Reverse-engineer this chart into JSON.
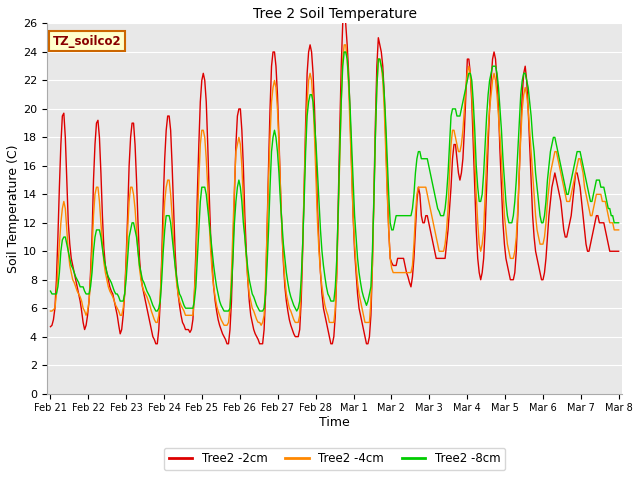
{
  "title": "Tree 2 Soil Temperature",
  "xlabel": "Time",
  "ylabel": "Soil Temperature (C)",
  "ylim": [
    0,
    26
  ],
  "background_color": "#ffffff",
  "plot_bg_color": "#e8e8e8",
  "grid_color": "#ffffff",
  "label_box_text": "TZ_soilco2",
  "label_box_bg": "#ffffcc",
  "label_box_edge": "#cc6600",
  "series": {
    "Tree2 -2cm": {
      "color": "#dd0000",
      "linewidth": 1.0
    },
    "Tree2 -4cm": {
      "color": "#ff8800",
      "linewidth": 1.0
    },
    "Tree2 -8cm": {
      "color": "#00cc00",
      "linewidth": 1.0
    }
  },
  "x_tick_labels": [
    "Feb 21",
    "Feb 22",
    "Feb 23",
    "Feb 24",
    "Feb 25",
    "Feb 26",
    "Feb 27",
    "Feb 28",
    "Mar 1",
    "Mar 2",
    "Mar 3",
    "Mar 4",
    "Mar 5",
    "Mar 6",
    "Mar 7",
    "Mar 8"
  ],
  "data_2cm": [
    4.7,
    4.8,
    5.2,
    6.0,
    8.0,
    11.0,
    14.5,
    17.5,
    19.5,
    19.7,
    18.0,
    15.0,
    12.0,
    10.5,
    9.5,
    9.0,
    8.5,
    8.0,
    7.5,
    7.0,
    6.5,
    5.8,
    5.0,
    4.5,
    4.8,
    5.5,
    6.5,
    8.5,
    11.0,
    15.0,
    17.5,
    19.0,
    19.2,
    18.0,
    15.5,
    12.5,
    10.2,
    9.0,
    8.5,
    8.0,
    7.5,
    7.2,
    7.0,
    6.5,
    6.0,
    5.5,
    4.8,
    4.2,
    4.5,
    5.5,
    7.0,
    9.5,
    12.5,
    16.0,
    18.0,
    19.0,
    19.0,
    17.5,
    15.0,
    12.0,
    9.5,
    8.2,
    7.5,
    7.0,
    6.5,
    6.0,
    5.5,
    5.0,
    4.5,
    4.0,
    3.8,
    3.5,
    3.5,
    4.5,
    6.5,
    9.5,
    13.5,
    16.5,
    18.5,
    19.5,
    19.5,
    18.5,
    16.0,
    13.0,
    10.0,
    8.2,
    7.0,
    6.2,
    5.5,
    5.0,
    4.8,
    4.5,
    4.5,
    4.5,
    4.3,
    4.5,
    5.2,
    7.0,
    10.0,
    14.0,
    17.5,
    20.5,
    22.0,
    22.5,
    22.0,
    20.5,
    17.5,
    14.0,
    11.0,
    9.0,
    7.5,
    6.5,
    5.8,
    5.2,
    4.8,
    4.5,
    4.2,
    4.0,
    3.8,
    3.5,
    3.5,
    4.5,
    6.5,
    10.0,
    14.0,
    17.5,
    19.5,
    20.0,
    20.0,
    18.5,
    16.0,
    12.5,
    10.0,
    8.0,
    6.5,
    5.5,
    5.0,
    4.5,
    4.2,
    4.0,
    3.8,
    3.5,
    3.5,
    3.5,
    4.5,
    7.0,
    11.5,
    16.0,
    20.0,
    23.0,
    24.0,
    24.0,
    23.0,
    21.0,
    18.0,
    14.5,
    11.5,
    9.2,
    7.5,
    6.5,
    5.8,
    5.2,
    4.8,
    4.5,
    4.2,
    4.0,
    4.0,
    4.0,
    4.5,
    6.5,
    10.0,
    14.5,
    19.0,
    22.5,
    24.0,
    24.5,
    24.0,
    22.5,
    20.0,
    16.5,
    13.0,
    10.5,
    8.5,
    7.0,
    6.0,
    5.5,
    5.0,
    4.5,
    4.0,
    3.5,
    3.5,
    4.0,
    5.5,
    8.5,
    13.5,
    18.5,
    23.0,
    26.0,
    26.5,
    26.0,
    24.5,
    22.5,
    19.5,
    16.0,
    12.5,
    10.0,
    8.5,
    7.0,
    6.0,
    5.5,
    5.0,
    4.5,
    4.0,
    3.5,
    3.5,
    4.0,
    5.5,
    9.0,
    14.0,
    19.0,
    23.0,
    25.0,
    24.5,
    24.0,
    23.0,
    21.0,
    18.0,
    14.5,
    11.5,
    9.5,
    9.2,
    9.0,
    9.0,
    9.0,
    9.5,
    9.5,
    9.5,
    9.5,
    9.5,
    9.0,
    8.5,
    8.2,
    7.8,
    7.5,
    8.2,
    9.5,
    11.5,
    13.5,
    14.5,
    14.0,
    12.5,
    12.0,
    12.0,
    12.5,
    12.5,
    12.0,
    11.5,
    11.0,
    10.5,
    10.0,
    9.5,
    9.5,
    9.5,
    9.5,
    9.5,
    9.5,
    9.5,
    10.5,
    11.5,
    13.0,
    14.5,
    16.5,
    17.5,
    17.5,
    16.5,
    15.5,
    15.0,
    15.5,
    16.5,
    18.5,
    21.0,
    23.5,
    23.5,
    22.5,
    20.5,
    17.5,
    14.5,
    11.5,
    9.5,
    8.5,
    8.0,
    8.5,
    9.5,
    11.5,
    14.5,
    17.5,
    20.0,
    22.0,
    23.5,
    24.0,
    23.5,
    22.0,
    20.0,
    17.0,
    14.5,
    12.0,
    10.5,
    9.5,
    9.0,
    8.5,
    8.0,
    8.0,
    8.0,
    8.5,
    10.0,
    12.5,
    15.5,
    18.5,
    21.0,
    22.5,
    23.0,
    22.0,
    20.0,
    17.5,
    15.0,
    12.5,
    11.0,
    10.0,
    9.5,
    9.0,
    8.5,
    8.0,
    8.0,
    8.5,
    9.5,
    11.0,
    12.5,
    13.5,
    14.5,
    15.0,
    15.5,
    15.0,
    14.5,
    14.0,
    13.5,
    12.5,
    11.5,
    11.0,
    11.0,
    11.5,
    12.0,
    12.5,
    13.5,
    14.5,
    15.5,
    15.5,
    15.0,
    14.5,
    13.5,
    12.5,
    11.5,
    10.5,
    10.0,
    10.0,
    10.5,
    11.0,
    11.5,
    12.0,
    12.5,
    12.5,
    12.0,
    12.0,
    12.0,
    12.0,
    11.5,
    11.0,
    10.5,
    10.0,
    10.0,
    10.0,
    10.0,
    10.0,
    10.0,
    10.0
  ],
  "data_4cm": [
    5.8,
    5.8,
    5.9,
    6.0,
    7.0,
    8.8,
    10.5,
    12.0,
    13.0,
    13.5,
    13.0,
    11.5,
    10.0,
    9.0,
    8.5,
    8.0,
    7.8,
    7.5,
    7.2,
    7.0,
    6.8,
    6.5,
    6.0,
    5.8,
    5.5,
    5.8,
    6.5,
    8.0,
    10.0,
    12.5,
    14.0,
    14.5,
    14.5,
    13.5,
    12.0,
    10.5,
    9.2,
    8.5,
    8.0,
    7.5,
    7.2,
    7.0,
    6.8,
    6.5,
    6.2,
    6.0,
    5.8,
    5.5,
    5.5,
    6.0,
    7.0,
    9.0,
    11.5,
    13.5,
    14.5,
    14.5,
    14.0,
    13.0,
    11.5,
    10.0,
    8.8,
    8.0,
    7.5,
    7.2,
    7.0,
    6.8,
    6.5,
    6.2,
    5.8,
    5.5,
    5.2,
    5.0,
    5.0,
    5.5,
    7.0,
    9.0,
    11.5,
    13.5,
    14.5,
    15.0,
    15.0,
    14.0,
    12.5,
    10.5,
    9.0,
    7.8,
    7.0,
    6.5,
    6.2,
    6.0,
    5.8,
    5.5,
    5.5,
    5.5,
    5.5,
    5.5,
    5.5,
    7.0,
    9.0,
    12.0,
    15.0,
    17.5,
    18.5,
    18.5,
    18.0,
    16.5,
    14.5,
    12.0,
    10.0,
    8.5,
    7.5,
    6.8,
    6.2,
    5.8,
    5.5,
    5.2,
    5.0,
    4.8,
    4.8,
    4.8,
    5.0,
    6.0,
    8.5,
    11.5,
    14.5,
    17.0,
    17.5,
    18.0,
    17.5,
    16.0,
    13.5,
    11.0,
    9.5,
    8.0,
    7.0,
    6.5,
    6.0,
    5.8,
    5.5,
    5.2,
    5.0,
    5.0,
    4.8,
    5.0,
    5.5,
    8.0,
    11.5,
    15.0,
    18.0,
    20.5,
    21.5,
    22.0,
    21.5,
    20.0,
    17.5,
    14.5,
    11.5,
    9.5,
    8.0,
    7.0,
    6.5,
    6.0,
    5.8,
    5.5,
    5.2,
    5.0,
    5.0,
    5.0,
    5.5,
    7.5,
    10.5,
    14.5,
    18.0,
    20.5,
    22.0,
    22.5,
    22.0,
    20.5,
    18.0,
    15.0,
    12.0,
    10.0,
    8.5,
    7.5,
    6.8,
    6.2,
    5.8,
    5.5,
    5.0,
    5.0,
    5.0,
    5.0,
    6.0,
    8.5,
    12.5,
    16.5,
    20.5,
    23.5,
    24.5,
    24.5,
    23.5,
    21.5,
    18.5,
    15.5,
    12.5,
    10.5,
    9.0,
    7.8,
    7.0,
    6.5,
    6.0,
    5.5,
    5.0,
    5.0,
    5.0,
    5.0,
    6.5,
    9.0,
    13.5,
    18.0,
    21.5,
    23.5,
    23.5,
    23.0,
    22.0,
    20.0,
    17.0,
    14.0,
    11.5,
    9.5,
    8.8,
    8.5,
    8.5,
    8.5,
    8.5,
    8.5,
    8.5,
    8.5,
    8.5,
    8.5,
    8.5,
    8.5,
    8.5,
    8.5,
    9.0,
    10.5,
    12.5,
    14.0,
    14.5,
    14.5,
    14.5,
    14.5,
    14.5,
    14.5,
    14.0,
    13.5,
    13.0,
    12.5,
    12.0,
    11.5,
    11.0,
    10.5,
    10.0,
    10.0,
    10.0,
    10.0,
    10.5,
    11.5,
    13.0,
    15.5,
    17.5,
    18.5,
    18.5,
    18.0,
    17.5,
    17.0,
    17.0,
    17.5,
    18.5,
    20.0,
    21.5,
    22.5,
    23.0,
    22.5,
    21.0,
    19.0,
    16.5,
    14.0,
    12.0,
    10.5,
    10.0,
    10.5,
    11.5,
    14.0,
    16.5,
    18.5,
    20.0,
    21.0,
    22.0,
    22.5,
    22.0,
    21.0,
    19.5,
    18.0,
    16.5,
    14.5,
    12.5,
    11.5,
    10.5,
    10.0,
    9.5,
    9.5,
    9.5,
    10.0,
    11.0,
    13.0,
    15.5,
    18.0,
    20.0,
    21.0,
    21.5,
    21.0,
    20.0,
    18.5,
    17.0,
    15.5,
    14.0,
    12.5,
    11.5,
    11.0,
    10.5,
    10.5,
    10.5,
    11.0,
    12.0,
    13.5,
    14.5,
    15.5,
    16.0,
    16.5,
    17.0,
    17.0,
    16.5,
    16.0,
    15.5,
    15.0,
    14.5,
    14.0,
    13.5,
    13.5,
    13.5,
    14.0,
    14.5,
    15.0,
    15.5,
    16.0,
    16.5,
    16.5,
    16.0,
    15.5,
    14.5,
    14.0,
    13.5,
    13.0,
    12.5,
    12.5,
    13.0,
    13.5,
    14.0,
    14.0,
    14.0,
    14.0,
    13.5,
    13.5,
    13.5,
    13.0,
    12.5,
    12.0,
    12.0,
    12.0,
    11.5,
    11.5,
    11.5,
    11.5
  ],
  "data_8cm": [
    7.2,
    7.0,
    7.0,
    7.0,
    7.0,
    7.5,
    8.5,
    10.0,
    10.8,
    11.0,
    11.0,
    10.5,
    10.0,
    9.5,
    9.0,
    8.8,
    8.5,
    8.2,
    8.0,
    7.8,
    7.5,
    7.5,
    7.5,
    7.2,
    7.0,
    7.0,
    7.0,
    7.5,
    8.5,
    10.0,
    11.0,
    11.5,
    11.5,
    11.5,
    11.0,
    10.2,
    9.5,
    9.0,
    8.5,
    8.2,
    8.0,
    7.8,
    7.5,
    7.2,
    7.0,
    7.0,
    6.8,
    6.5,
    6.5,
    6.5,
    7.0,
    8.0,
    9.5,
    11.0,
    11.5,
    12.0,
    12.0,
    11.5,
    11.0,
    10.0,
    9.0,
    8.5,
    8.0,
    7.8,
    7.5,
    7.2,
    7.0,
    6.8,
    6.5,
    6.2,
    6.0,
    5.8,
    5.8,
    6.0,
    6.5,
    8.0,
    10.0,
    11.5,
    12.5,
    12.5,
    12.5,
    12.0,
    11.0,
    10.0,
    9.0,
    8.2,
    7.5,
    7.0,
    6.8,
    6.5,
    6.2,
    6.0,
    6.0,
    6.0,
    6.0,
    6.0,
    6.0,
    6.5,
    7.5,
    9.5,
    11.5,
    13.5,
    14.5,
    14.5,
    14.5,
    14.0,
    13.0,
    12.0,
    11.0,
    10.0,
    9.0,
    8.2,
    7.5,
    7.0,
    6.5,
    6.2,
    6.0,
    5.8,
    5.8,
    5.8,
    5.8,
    6.0,
    7.5,
    9.5,
    12.0,
    13.5,
    14.5,
    15.0,
    14.5,
    13.5,
    12.0,
    11.0,
    9.8,
    8.8,
    8.0,
    7.5,
    7.0,
    6.8,
    6.5,
    6.2,
    6.0,
    5.8,
    5.8,
    5.8,
    6.0,
    7.0,
    9.0,
    11.5,
    14.5,
    17.0,
    18.0,
    18.5,
    18.0,
    17.0,
    15.5,
    13.5,
    12.0,
    10.5,
    9.5,
    8.5,
    7.8,
    7.2,
    6.8,
    6.5,
    6.2,
    6.0,
    5.8,
    6.0,
    6.5,
    8.0,
    10.5,
    13.5,
    17.0,
    19.5,
    20.5,
    21.0,
    21.0,
    20.5,
    19.0,
    17.5,
    15.5,
    13.5,
    11.5,
    10.0,
    9.0,
    8.2,
    7.5,
    7.0,
    6.8,
    6.5,
    6.5,
    6.5,
    7.5,
    9.5,
    13.0,
    17.0,
    20.5,
    23.0,
    24.0,
    24.0,
    23.5,
    22.0,
    20.0,
    17.5,
    15.0,
    12.5,
    11.0,
    9.5,
    8.5,
    7.8,
    7.2,
    6.8,
    6.5,
    6.2,
    6.5,
    7.0,
    7.5,
    10.0,
    13.5,
    18.0,
    21.5,
    23.5,
    23.5,
    23.0,
    22.5,
    21.0,
    19.0,
    16.5,
    14.0,
    12.0,
    11.5,
    11.5,
    12.0,
    12.5,
    12.5,
    12.5,
    12.5,
    12.5,
    12.5,
    12.5,
    12.5,
    12.5,
    12.5,
    12.5,
    13.0,
    14.0,
    15.5,
    16.5,
    17.0,
    17.0,
    16.5,
    16.5,
    16.5,
    16.5,
    16.5,
    16.0,
    15.5,
    15.0,
    14.5,
    14.0,
    13.5,
    13.0,
    12.8,
    12.5,
    12.5,
    12.5,
    13.0,
    14.0,
    15.5,
    17.5,
    19.5,
    20.0,
    20.0,
    20.0,
    19.5,
    19.5,
    19.5,
    20.0,
    20.5,
    21.0,
    21.5,
    22.0,
    22.5,
    22.5,
    22.0,
    20.5,
    18.5,
    16.0,
    14.5,
    13.5,
    13.5,
    14.0,
    15.5,
    17.5,
    19.5,
    21.0,
    22.0,
    22.5,
    23.0,
    23.0,
    23.0,
    22.5,
    21.5,
    20.0,
    18.5,
    16.5,
    15.0,
    13.5,
    12.5,
    12.0,
    12.0,
    12.0,
    12.5,
    13.5,
    15.0,
    17.0,
    19.0,
    21.0,
    22.0,
    22.5,
    22.5,
    22.0,
    21.5,
    20.5,
    19.5,
    18.0,
    17.0,
    15.5,
    14.5,
    13.5,
    12.5,
    12.0,
    12.0,
    12.5,
    13.5,
    15.0,
    16.0,
    17.0,
    17.5,
    18.0,
    18.0,
    17.5,
    17.0,
    16.5,
    16.0,
    15.5,
    15.0,
    14.5,
    14.0,
    14.0,
    14.5,
    15.0,
    15.5,
    16.0,
    16.5,
    17.0,
    17.0,
    17.0,
    16.5,
    16.0,
    15.5,
    15.0,
    14.5,
    14.0,
    13.5,
    13.5,
    14.0,
    14.5,
    15.0,
    15.0,
    15.0,
    14.5,
    14.5,
    14.5,
    14.0,
    13.5,
    13.0,
    13.0,
    12.5,
    12.5,
    12.0,
    12.0,
    12.0,
    12.0
  ]
}
